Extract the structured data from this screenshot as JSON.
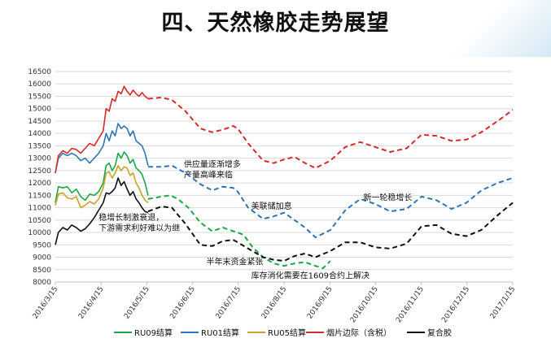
{
  "slide": {
    "title": "四、天然橡胶走势展望"
  },
  "chart_data": {
    "type": "line",
    "title": "",
    "xlabel": "",
    "ylabel": "",
    "ylim": [
      8000,
      16500
    ],
    "yticks": [
      8000,
      8500,
      9000,
      9500,
      10000,
      10500,
      11000,
      11500,
      12000,
      12500,
      13000,
      13500,
      14000,
      14500,
      15000,
      15500,
      16000,
      16500
    ],
    "xlim": [
      "2016-03-15",
      "2017-01-15"
    ],
    "xticks": [
      "2016/3/15",
      "2016/4/15",
      "2016/5/15",
      "2016/6/15",
      "2016/7/15",
      "2016/8/15",
      "2016/9/15",
      "2016/10/15",
      "2016/11/15",
      "2016/12/15",
      "2017/1/15"
    ],
    "grid": "horizontal",
    "legend_position": "bottom",
    "series": [
      {
        "name": "RU09结算",
        "color": "#1aa84a",
        "actual": [
          [
            "2016-03-15",
            11200
          ],
          [
            "2016-03-17",
            11850
          ],
          [
            "2016-03-20",
            11800
          ],
          [
            "2016-03-23",
            11850
          ],
          [
            "2016-03-26",
            11600
          ],
          [
            "2016-03-29",
            11750
          ],
          [
            "2016-04-01",
            11450
          ],
          [
            "2016-04-04",
            11300
          ],
          [
            "2016-04-07",
            11550
          ],
          [
            "2016-04-10",
            11500
          ],
          [
            "2016-04-13",
            11650
          ],
          [
            "2016-04-16",
            12000
          ],
          [
            "2016-04-18",
            12700
          ],
          [
            "2016-04-20",
            12800
          ],
          [
            "2016-04-22",
            12500
          ],
          [
            "2016-04-24",
            12700
          ],
          [
            "2016-04-26",
            13200
          ],
          [
            "2016-04-28",
            13000
          ],
          [
            "2016-04-30",
            13250
          ],
          [
            "2016-05-02",
            13100
          ],
          [
            "2016-05-04",
            12800
          ],
          [
            "2016-05-06",
            12950
          ],
          [
            "2016-05-08",
            12600
          ],
          [
            "2016-05-10",
            12500
          ],
          [
            "2016-05-12",
            12350
          ],
          [
            "2016-05-14",
            12000
          ],
          [
            "2016-05-16",
            11500
          ]
        ],
        "forecast": [
          [
            "2016-05-16",
            11350
          ],
          [
            "2016-05-25",
            11450
          ],
          [
            "2016-05-31",
            11500
          ],
          [
            "2016-06-05",
            11350
          ],
          [
            "2016-06-12",
            11000
          ],
          [
            "2016-06-20",
            10400
          ],
          [
            "2016-06-28",
            10050
          ],
          [
            "2016-07-05",
            10200
          ],
          [
            "2016-07-12",
            10050
          ],
          [
            "2016-07-15",
            10000
          ],
          [
            "2016-07-19",
            9900
          ],
          [
            "2016-07-25",
            9400
          ],
          [
            "2016-08-01",
            9000
          ],
          [
            "2016-08-08",
            8750
          ],
          [
            "2016-08-15",
            8650
          ],
          [
            "2016-08-22",
            8750
          ],
          [
            "2016-08-29",
            8800
          ],
          [
            "2016-09-05",
            8650
          ],
          [
            "2016-09-10",
            8550
          ],
          [
            "2016-09-15",
            8850
          ]
        ]
      },
      {
        "name": "RU01结算",
        "color": "#2e75b6",
        "actual": [
          [
            "2016-03-15",
            12400
          ],
          [
            "2016-03-17",
            13000
          ],
          [
            "2016-03-20",
            13200
          ],
          [
            "2016-03-23",
            13100
          ],
          [
            "2016-03-26",
            13200
          ],
          [
            "2016-03-29",
            13100
          ],
          [
            "2016-04-01",
            12900
          ],
          [
            "2016-04-04",
            13000
          ],
          [
            "2016-04-07",
            12800
          ],
          [
            "2016-04-10",
            13000
          ],
          [
            "2016-04-13",
            13200
          ],
          [
            "2016-04-16",
            13500
          ],
          [
            "2016-04-18",
            14000
          ],
          [
            "2016-04-20",
            13700
          ],
          [
            "2016-04-22",
            14100
          ],
          [
            "2016-04-24",
            13900
          ],
          [
            "2016-04-26",
            14400
          ],
          [
            "2016-04-28",
            14200
          ],
          [
            "2016-04-30",
            14300
          ],
          [
            "2016-05-02",
            14200
          ],
          [
            "2016-05-04",
            13900
          ],
          [
            "2016-05-06",
            14100
          ],
          [
            "2016-05-08",
            13700
          ],
          [
            "2016-05-10",
            13600
          ],
          [
            "2016-05-12",
            13500
          ],
          [
            "2016-05-14",
            13200
          ],
          [
            "2016-05-16",
            12700
          ]
        ],
        "forecast": [
          [
            "2016-05-16",
            12650
          ],
          [
            "2016-05-25",
            12650
          ],
          [
            "2016-06-01",
            12700
          ],
          [
            "2016-06-10",
            12400
          ],
          [
            "2016-06-20",
            11950
          ],
          [
            "2016-06-28",
            11700
          ],
          [
            "2016-07-05",
            11850
          ],
          [
            "2016-07-12",
            11800
          ],
          [
            "2016-07-15",
            11650
          ],
          [
            "2016-07-22",
            11000
          ],
          [
            "2016-08-01",
            10550
          ],
          [
            "2016-08-08",
            10650
          ],
          [
            "2016-08-15",
            10800
          ],
          [
            "2016-08-22",
            10500
          ],
          [
            "2016-08-29",
            10200
          ],
          [
            "2016-09-05",
            9800
          ],
          [
            "2016-09-15",
            10100
          ],
          [
            "2016-09-25",
            10900
          ],
          [
            "2016-10-05",
            11350
          ],
          [
            "2016-10-15",
            11150
          ],
          [
            "2016-10-25",
            10850
          ],
          [
            "2016-11-05",
            10950
          ],
          [
            "2016-11-15",
            11450
          ],
          [
            "2016-11-25",
            11300
          ],
          [
            "2016-12-05",
            10950
          ],
          [
            "2016-12-15",
            11200
          ],
          [
            "2016-12-25",
            11700
          ],
          [
            "2017-01-05",
            12000
          ],
          [
            "2017-01-15",
            12200
          ]
        ]
      },
      {
        "name": "RU05结算",
        "color": "#c9a227",
        "actual": [
          [
            "2016-03-15",
            11100
          ],
          [
            "2016-03-17",
            11550
          ],
          [
            "2016-03-20",
            11600
          ],
          [
            "2016-03-23",
            11400
          ],
          [
            "2016-03-26",
            11350
          ],
          [
            "2016-03-29",
            11450
          ],
          [
            "2016-04-01",
            11000
          ],
          [
            "2016-04-04",
            11100
          ],
          [
            "2016-04-07",
            11250
          ],
          [
            "2016-04-10",
            11150
          ],
          [
            "2016-04-13",
            11350
          ],
          [
            "2016-04-16",
            11800
          ],
          [
            "2016-04-18",
            12400
          ],
          [
            "2016-04-20",
            12450
          ],
          [
            "2016-04-22",
            12200
          ],
          [
            "2016-04-24",
            12400
          ],
          [
            "2016-04-26",
            12700
          ],
          [
            "2016-04-28",
            12500
          ],
          [
            "2016-04-30",
            12650
          ],
          [
            "2016-05-02",
            12600
          ],
          [
            "2016-05-04",
            12300
          ],
          [
            "2016-05-06",
            12400
          ],
          [
            "2016-05-08",
            12000
          ],
          [
            "2016-05-10",
            11800
          ],
          [
            "2016-05-12",
            11500
          ],
          [
            "2016-05-14",
            11300
          ],
          [
            "2016-05-16",
            11200
          ]
        ]
      },
      {
        "name": "烟片边际（含税）",
        "color": "#d42a2a",
        "actual": [
          [
            "2016-03-15",
            12400
          ],
          [
            "2016-03-17",
            13100
          ],
          [
            "2016-03-20",
            13300
          ],
          [
            "2016-03-23",
            13200
          ],
          [
            "2016-03-26",
            13400
          ],
          [
            "2016-03-29",
            13350
          ],
          [
            "2016-04-01",
            13200
          ],
          [
            "2016-04-04",
            13400
          ],
          [
            "2016-04-07",
            13600
          ],
          [
            "2016-04-10",
            13500
          ],
          [
            "2016-04-13",
            13800
          ],
          [
            "2016-04-16",
            14100
          ],
          [
            "2016-04-18",
            15000
          ],
          [
            "2016-04-20",
            14900
          ],
          [
            "2016-04-22",
            15400
          ],
          [
            "2016-04-24",
            15300
          ],
          [
            "2016-04-26",
            15700
          ],
          [
            "2016-04-28",
            15600
          ],
          [
            "2016-04-30",
            15900
          ],
          [
            "2016-05-02",
            15700
          ],
          [
            "2016-05-04",
            15550
          ],
          [
            "2016-05-06",
            15750
          ],
          [
            "2016-05-08",
            15600
          ],
          [
            "2016-05-10",
            15500
          ],
          [
            "2016-05-12",
            15650
          ],
          [
            "2016-05-14",
            15500
          ],
          [
            "2016-05-16",
            15400
          ]
        ],
        "forecast": [
          [
            "2016-05-16",
            15400
          ],
          [
            "2016-05-25",
            15450
          ],
          [
            "2016-06-01",
            15350
          ],
          [
            "2016-06-10",
            14900
          ],
          [
            "2016-06-20",
            14200
          ],
          [
            "2016-06-28",
            14050
          ],
          [
            "2016-07-05",
            14150
          ],
          [
            "2016-07-12",
            14300
          ],
          [
            "2016-07-15",
            14200
          ],
          [
            "2016-07-22",
            13600
          ],
          [
            "2016-08-01",
            12900
          ],
          [
            "2016-08-08",
            12800
          ],
          [
            "2016-08-15",
            12950
          ],
          [
            "2016-08-22",
            13050
          ],
          [
            "2016-08-29",
            12800
          ],
          [
            "2016-09-05",
            12600
          ],
          [
            "2016-09-15",
            12900
          ],
          [
            "2016-09-25",
            13450
          ],
          [
            "2016-10-05",
            13650
          ],
          [
            "2016-10-15",
            13450
          ],
          [
            "2016-10-25",
            13250
          ],
          [
            "2016-11-05",
            13400
          ],
          [
            "2016-11-15",
            13950
          ],
          [
            "2016-11-25",
            13900
          ],
          [
            "2016-12-05",
            13700
          ],
          [
            "2016-12-15",
            13750
          ],
          [
            "2016-12-25",
            14050
          ],
          [
            "2017-01-05",
            14500
          ],
          [
            "2017-01-15",
            14950
          ]
        ]
      },
      {
        "name": "复合胶",
        "color": "#111111",
        "actual": [
          [
            "2016-03-15",
            9500
          ],
          [
            "2016-03-17",
            10000
          ],
          [
            "2016-03-20",
            10200
          ],
          [
            "2016-03-23",
            10100
          ],
          [
            "2016-03-26",
            10300
          ],
          [
            "2016-03-29",
            10200
          ],
          [
            "2016-04-01",
            10050
          ],
          [
            "2016-04-04",
            10150
          ],
          [
            "2016-04-07",
            10350
          ],
          [
            "2016-04-10",
            10600
          ],
          [
            "2016-04-13",
            10900
          ],
          [
            "2016-04-16",
            11200
          ],
          [
            "2016-04-18",
            11600
          ],
          [
            "2016-04-20",
            11550
          ],
          [
            "2016-04-22",
            11650
          ],
          [
            "2016-04-24",
            11800
          ],
          [
            "2016-04-26",
            12200
          ],
          [
            "2016-04-28",
            11900
          ],
          [
            "2016-04-30",
            12050
          ],
          [
            "2016-05-02",
            11750
          ],
          [
            "2016-05-04",
            11500
          ],
          [
            "2016-05-06",
            11650
          ],
          [
            "2016-05-08",
            11350
          ],
          [
            "2016-05-10",
            11200
          ],
          [
            "2016-05-12",
            11000
          ],
          [
            "2016-05-14",
            10850
          ],
          [
            "2016-05-16",
            10800
          ]
        ],
        "forecast": [
          [
            "2016-05-16",
            10850
          ],
          [
            "2016-05-25",
            11050
          ],
          [
            "2016-06-01",
            11000
          ],
          [
            "2016-06-10",
            10350
          ],
          [
            "2016-06-20",
            9500
          ],
          [
            "2016-06-28",
            9450
          ],
          [
            "2016-07-05",
            9650
          ],
          [
            "2016-07-12",
            9700
          ],
          [
            "2016-07-15",
            9600
          ],
          [
            "2016-07-22",
            9350
          ],
          [
            "2016-08-01",
            9000
          ],
          [
            "2016-08-08",
            8900
          ],
          [
            "2016-08-15",
            8850
          ],
          [
            "2016-08-22",
            9050
          ],
          [
            "2016-08-29",
            9150
          ],
          [
            "2016-09-05",
            9000
          ],
          [
            "2016-09-15",
            9250
          ],
          [
            "2016-09-25",
            9600
          ],
          [
            "2016-10-05",
            9600
          ],
          [
            "2016-10-15",
            9400
          ],
          [
            "2016-10-25",
            9350
          ],
          [
            "2016-11-05",
            9550
          ],
          [
            "2016-11-15",
            10250
          ],
          [
            "2016-11-25",
            10300
          ],
          [
            "2016-12-05",
            9950
          ],
          [
            "2016-12-15",
            9850
          ],
          [
            "2016-12-25",
            10100
          ],
          [
            "2017-01-05",
            10700
          ],
          [
            "2017-01-15",
            11200
          ]
        ]
      }
    ],
    "annotations": [
      {
        "lines": [
          "供应量逐渐增多",
          "产量高峰来临"
        ],
        "x": "2016-06-09",
        "y": 12650
      },
      {
        "lines": [
          "美联储加息"
        ],
        "x": "2016-07-24",
        "y": 10950
      },
      {
        "lines": [
          "新一轮稳增长"
        ],
        "x": "2016-10-07",
        "y": 11300
      },
      {
        "lines": [
          "稳增长制激衰退，",
          "下游需求利好难以为继"
        ],
        "x": "2016-04-13",
        "y": 10500
      },
      {
        "lines": [
          "半年末资金紧张"
        ],
        "x": "2016-06-24",
        "y": 8700
      },
      {
        "lines": [
          "库存消化需要在1609合约上解决"
        ],
        "x": "2016-07-24",
        "y": 8150
      }
    ]
  }
}
